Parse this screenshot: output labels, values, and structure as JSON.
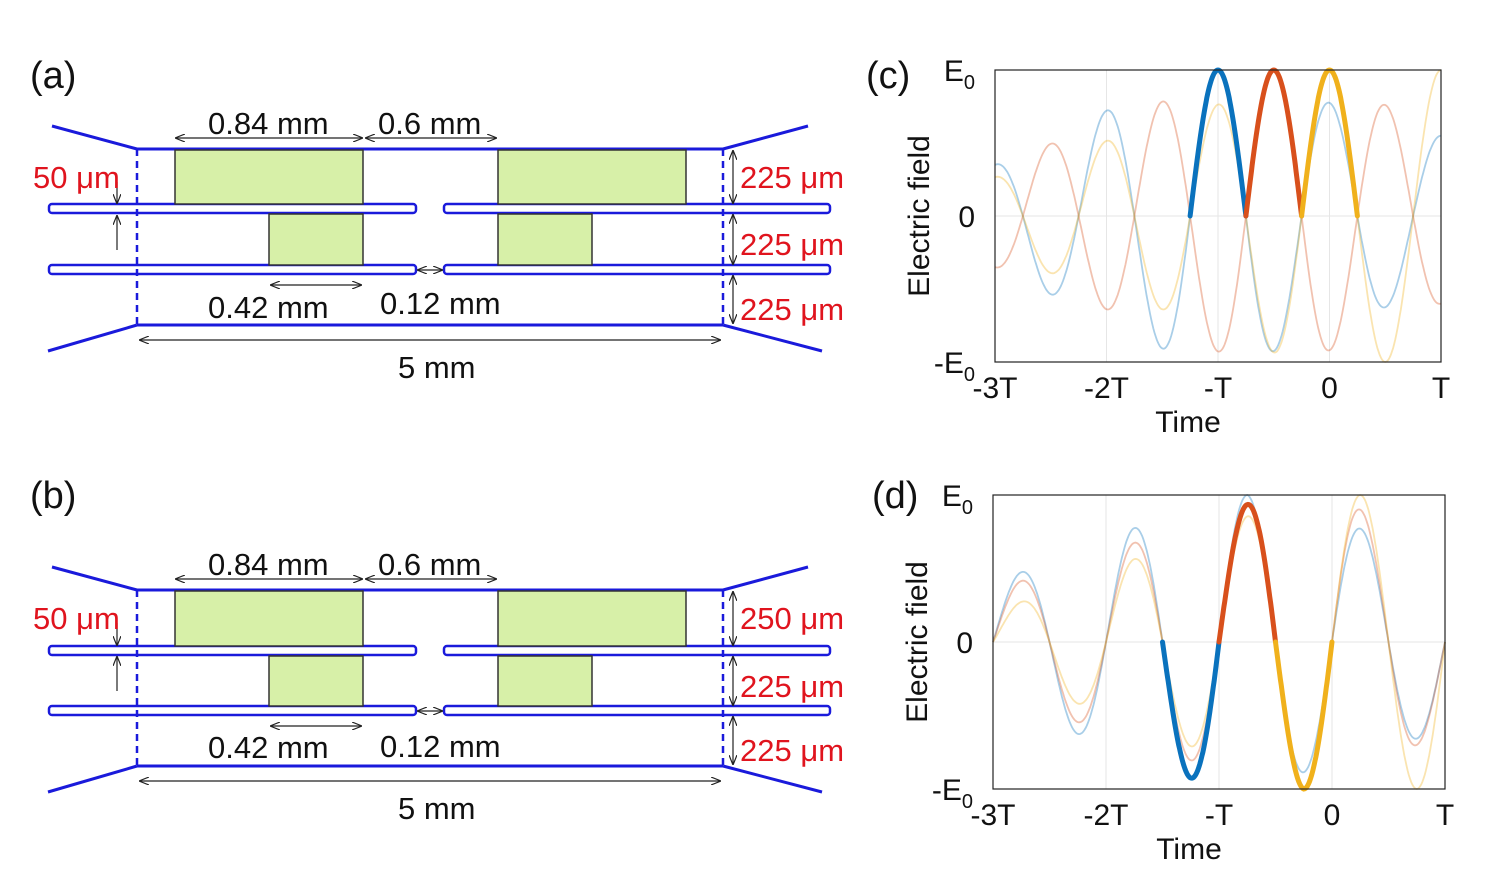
{
  "panels": {
    "a": {
      "label": "(a)",
      "dims": {
        "top_left": "0.84 mm",
        "top_gap": "0.6 mm",
        "bottom_left": "0.42 mm",
        "bottom_gap": "0.12 mm",
        "length": "5 mm",
        "thickness": "50 μm",
        "height_top": "225 μm",
        "height_mid": "225 μm",
        "height_bot": "225 μm"
      }
    },
    "b": {
      "label": "(b)",
      "dims": {
        "top_left": "0.84 mm",
        "top_gap": "0.6 mm",
        "bottom_left": "0.42 mm",
        "bottom_gap": "0.12 mm",
        "length": "5 mm",
        "thickness": "50 μm",
        "height_top": "250 μm",
        "height_mid": "225 μm",
        "height_bot": "225 μm"
      }
    },
    "c": {
      "label": "(c)"
    },
    "d": {
      "label": "(d)"
    }
  },
  "colors": {
    "blue": "#0a72bd",
    "red": "#d8501c",
    "yellow": "#f0b11c",
    "structure": "#1a1adb",
    "red_text": "#e0141e",
    "box_fill": "#d7f0a8"
  },
  "chart_data": [
    {
      "type": "line",
      "panel": "c",
      "xlabel": "Time",
      "ylabel": "Electric field",
      "xlim": [
        -3,
        1
      ],
      "ylim": [
        -1,
        1
      ],
      "xticklabels": [
        "-3T",
        "-2T",
        "-T",
        "0",
        "T"
      ],
      "xticks": [
        -3,
        -2,
        -1,
        0,
        1
      ],
      "yticklabels": [
        "-E",
        "0",
        "E"
      ],
      "yticks": [
        -1,
        0,
        1
      ],
      "ytick_subscript": "0",
      "series": [
        {
          "name": "blue",
          "color": "#0a72bd",
          "phase_shift": 0.0,
          "amp_min": 0.05,
          "highlight": [
            -1.25,
            -0.75
          ]
        },
        {
          "name": "red",
          "color": "#d8501c",
          "phase_shift": 0.5,
          "amp_min": 0.25,
          "highlight": [
            -0.75,
            -0.25
          ]
        },
        {
          "name": "yellow",
          "color": "#f0b11c",
          "phase_shift": 0.0,
          "amp_min": -0.05,
          "sign": -1,
          "highlight": [
            -0.25,
            0.25
          ]
        }
      ]
    },
    {
      "type": "line",
      "panel": "d",
      "xlabel": "Time",
      "ylabel": "Electric field",
      "xlim": [
        -3,
        1
      ],
      "ylim": [
        -1,
        1
      ],
      "xticklabels": [
        "-3T",
        "-2T",
        "-T",
        "0",
        "T"
      ],
      "xticks": [
        -3,
        -2,
        -1,
        0,
        1
      ],
      "yticklabels": [
        "-E",
        "0",
        "E"
      ],
      "yticks": [
        -1,
        0,
        1
      ],
      "ytick_subscript": "0",
      "series": [
        {
          "name": "blue",
          "color": "#0a72bd",
          "highlight": [
            -1.5,
            -1.0
          ]
        },
        {
          "name": "red",
          "color": "#d8501c",
          "highlight": [
            -1.0,
            -0.5
          ]
        },
        {
          "name": "yellow",
          "color": "#f0b11c",
          "highlight": [
            -0.5,
            0.0
          ]
        }
      ]
    }
  ]
}
